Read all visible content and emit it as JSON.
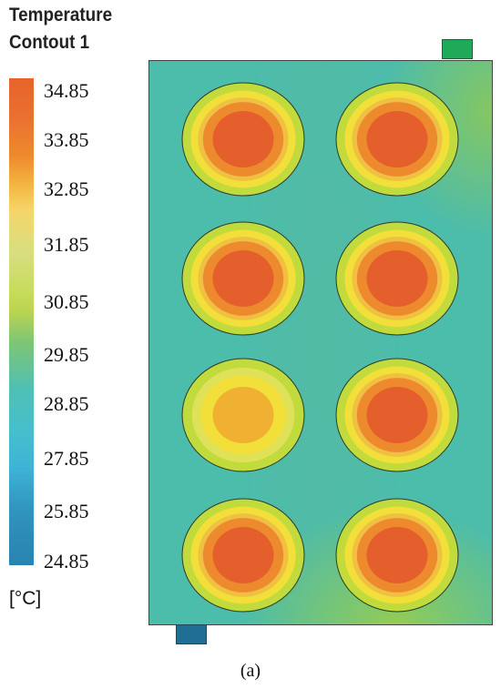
{
  "legend": {
    "title_line1": "Temperature",
    "title_line2": "Contout 1",
    "unit": "[°C]",
    "ticks": [
      "34.85",
      "33.85",
      "32.85",
      "31.85",
      "30.85",
      "29.85",
      "28.85",
      "27.85",
      "25.85",
      "24.85"
    ]
  },
  "caption": "(a)",
  "colors": {
    "hot": "#e45f2b",
    "warm": "#ee8a2e",
    "yellow": "#f2df3a",
    "green_yellow": "#c2db3c",
    "coolant": "#4cbcab",
    "outlet": "#1faa5a",
    "inlet": "#1f6f94"
  },
  "cells": [
    {
      "row": 1,
      "col": 1,
      "core_temp": "34.85"
    },
    {
      "row": 1,
      "col": 2,
      "core_temp": "34.85"
    },
    {
      "row": 2,
      "col": 1,
      "core_temp": "34.85"
    },
    {
      "row": 2,
      "col": 2,
      "core_temp": "34.85"
    },
    {
      "row": 3,
      "col": 1,
      "core_temp": "33.85"
    },
    {
      "row": 3,
      "col": 2,
      "core_temp": "34.85"
    },
    {
      "row": 4,
      "col": 1,
      "core_temp": "34.85"
    },
    {
      "row": 4,
      "col": 2,
      "core_temp": "34.85"
    }
  ]
}
